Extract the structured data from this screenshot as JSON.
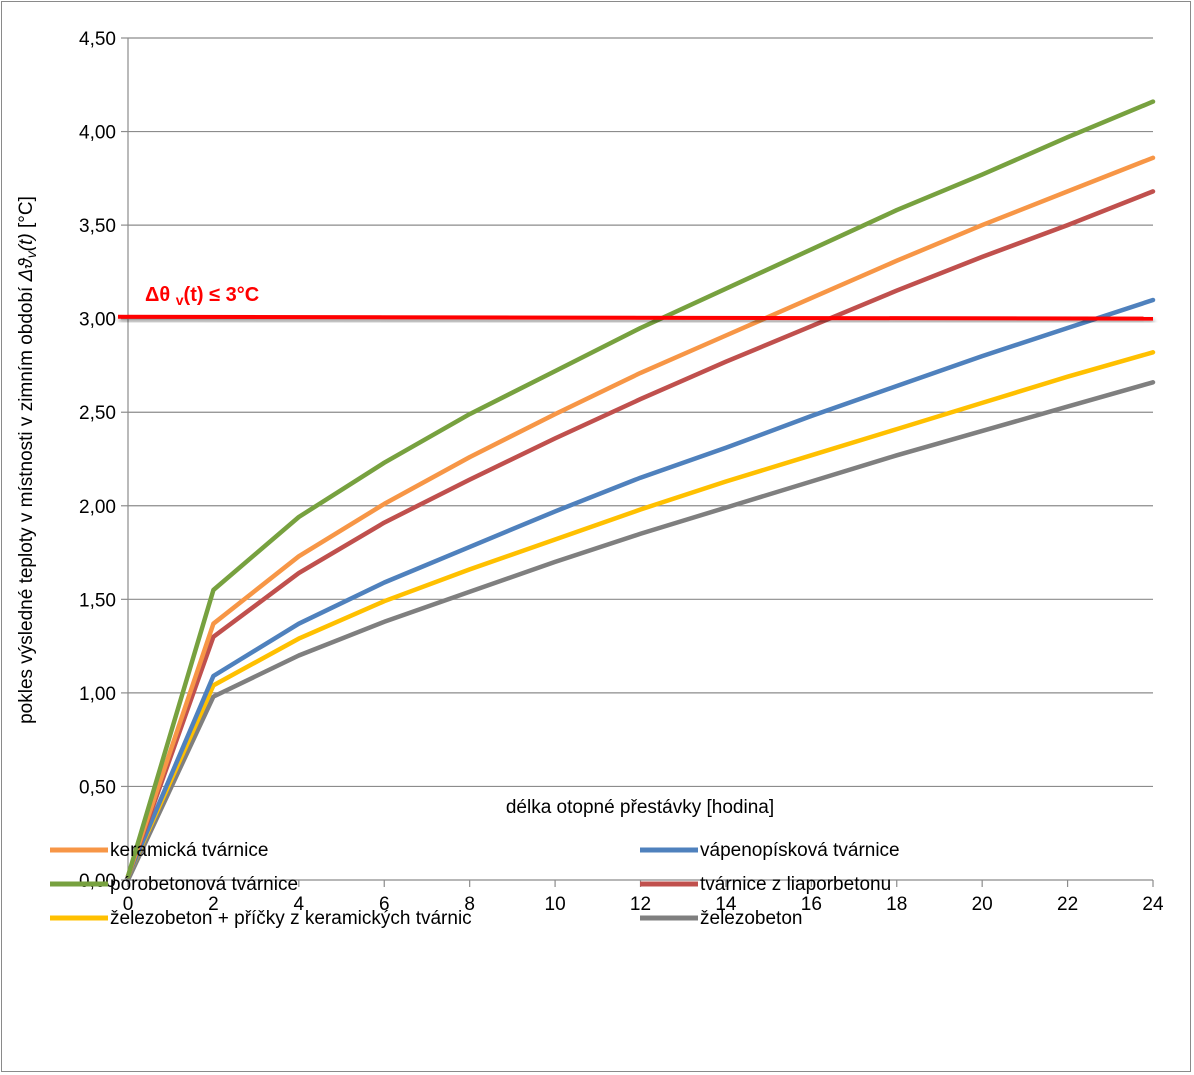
{
  "chart_data": {
    "type": "line",
    "xlabel": "délka otopné přestávky [hodina]",
    "ylabel_prefix": "pokles  výsledné teploty v místnosti v zimním období ",
    "ylabel_symbol": "Δϑ",
    "ylabel_sub": "v",
    "ylabel_arg": "(t)",
    "ylabel_unit": "  [°C]",
    "xlim": [
      0,
      24
    ],
    "ylim": [
      0,
      4.5
    ],
    "x_ticks": [
      0,
      2,
      4,
      6,
      8,
      10,
      12,
      14,
      16,
      18,
      20,
      22,
      24
    ],
    "y_ticks": [
      "0,00",
      "0,50",
      "1,00",
      "1,50",
      "2,00",
      "2,50",
      "3,00",
      "3,50",
      "4,00",
      "4,50"
    ],
    "grid": "horizontal",
    "legend_position": "bottom",
    "x": [
      0,
      2,
      4,
      6,
      8,
      10,
      12,
      14,
      16,
      18,
      20,
      22,
      24
    ],
    "series": [
      {
        "name": "keramická tvárnice",
        "color": "#f79646",
        "values": [
          0.02,
          1.37,
          1.73,
          2.01,
          2.26,
          2.49,
          2.71,
          2.91,
          3.11,
          3.31,
          3.5,
          3.68,
          3.86
        ]
      },
      {
        "name": "vápenopísková tvárnice",
        "color": "#4f81bd",
        "values": [
          0.02,
          1.09,
          1.37,
          1.59,
          1.78,
          1.97,
          2.15,
          2.31,
          2.48,
          2.64,
          2.8,
          2.95,
          3.1
        ]
      },
      {
        "name": "pórobetonová tvárnice",
        "color": "#77a13f",
        "values": [
          0.02,
          1.55,
          1.94,
          2.23,
          2.49,
          2.72,
          2.95,
          3.16,
          3.37,
          3.58,
          3.77,
          3.97,
          4.16
        ]
      },
      {
        "name": "tvárnice z liaporbetonu",
        "color": "#c0504d",
        "values": [
          0.02,
          1.3,
          1.64,
          1.91,
          2.14,
          2.36,
          2.57,
          2.77,
          2.96,
          3.15,
          3.33,
          3.5,
          3.68
        ]
      },
      {
        "name": "železobeton + příčky z keramických tvárnic",
        "color": "#ffc000",
        "values": [
          0.02,
          1.04,
          1.29,
          1.49,
          1.66,
          1.82,
          1.98,
          2.13,
          2.27,
          2.41,
          2.55,
          2.69,
          2.82
        ]
      },
      {
        "name": "železobeton",
        "color": "#7f7f7f",
        "values": [
          0.0,
          0.98,
          1.2,
          1.38,
          1.54,
          1.7,
          1.85,
          1.99,
          2.13,
          2.27,
          2.4,
          2.53,
          2.66
        ]
      }
    ],
    "threshold": {
      "label": "Δθ v(t) ≤ 3°C",
      "label_main": "Δθ ",
      "label_sub": "v",
      "label_rest": "(t) ≤ 3°C",
      "value_start": 3.01,
      "value_end": 3.0,
      "color": "#ff0000"
    }
  }
}
